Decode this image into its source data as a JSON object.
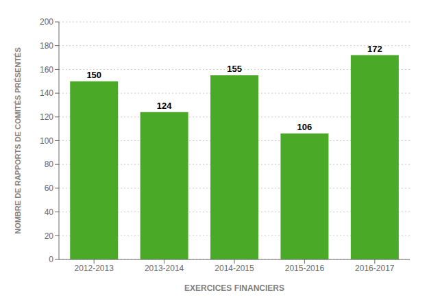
{
  "chart_data": {
    "type": "bar",
    "categories": [
      "2012-2013",
      "2013-2014",
      "2014-2015",
      "2015-2016",
      "2016-2017"
    ],
    "values": [
      150,
      124,
      155,
      106,
      172
    ],
    "color": "#4aaa28",
    "xlabel": "EXERCICES FINANCIERS",
    "ylabel": "NOMBRE DE RAPPORTS  DE COMITÉS  PRÉSENTÉS",
    "ylim": [
      0,
      200
    ],
    "yticks": [
      0,
      20,
      40,
      60,
      80,
      100,
      120,
      140,
      160,
      180,
      200
    ],
    "grid": true,
    "data_labels": true
  }
}
